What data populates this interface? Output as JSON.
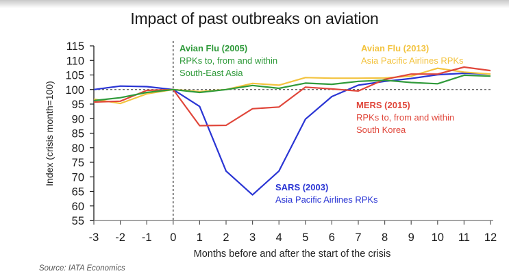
{
  "chart_data": {
    "type": "line",
    "title": "Impact of past outbreaks on aviation",
    "xlabel": "Months before and after the start of the crisis",
    "ylabel": "Index (crisis month=100)",
    "source": "Source: IATA Economics",
    "x": [
      -3,
      -2,
      -1,
      0,
      1,
      2,
      3,
      4,
      5,
      6,
      7,
      8,
      9,
      10,
      11,
      12
    ],
    "xlim": [
      -3,
      12
    ],
    "ylim": [
      55,
      115
    ],
    "yticks": [
      55,
      60,
      65,
      70,
      75,
      80,
      85,
      90,
      95,
      100,
      105,
      110,
      115
    ],
    "xticks": [
      "-3",
      "-2",
      "-1",
      "0",
      "1",
      "2",
      "3",
      "4",
      "5",
      "6",
      "7",
      "8",
      "9",
      "10",
      "11",
      "12"
    ],
    "reference_line_y": 100,
    "reference_line_x": 0,
    "grid": false,
    "legend": "inline annotations",
    "series": [
      {
        "name": "SARS (2003)",
        "subtitle": "Asia Pacific Airlines RPKs",
        "color": "#2a35d4",
        "values": [
          100,
          101.2,
          101,
          100,
          94.2,
          72,
          63.8,
          72,
          89.8,
          97.6,
          101.5,
          102.8,
          103.8,
          105.1,
          105.6,
          105.3
        ]
      },
      {
        "name": "MERS (2015)",
        "subtitle": "RPKs to, from and within South Korea",
        "subtitle_lines": [
          "RPKs to, from and within",
          "South Korea"
        ],
        "color": "#e0463a",
        "values": [
          95.7,
          96,
          99.7,
          100,
          87.6,
          87.7,
          93.4,
          94,
          100.8,
          100.2,
          99.5,
          103.5,
          105.3,
          105.3,
          107.7,
          106.5
        ]
      },
      {
        "name": "Avian Flu (2005)",
        "subtitle": "RPKs to, from and within South-East Asia",
        "subtitle_lines": [
          "RPKs to, from and within",
          "South-East Asia"
        ],
        "color": "#2f9a3a",
        "values": [
          96.2,
          97.2,
          99,
          100,
          99,
          100,
          101.4,
          100.4,
          102.2,
          101.8,
          102.8,
          103.2,
          102.4,
          102,
          104.9,
          104.6
        ]
      },
      {
        "name": "Avian Flu (2013)",
        "subtitle": "Asia Pacific Airlines RPKs",
        "color": "#f3c33e",
        "values": [
          96.7,
          95.2,
          98.5,
          100,
          99.3,
          100,
          102.1,
          101.5,
          104.1,
          103.9,
          103.9,
          104,
          104.6,
          107.3,
          106,
          105.3
        ]
      }
    ]
  }
}
